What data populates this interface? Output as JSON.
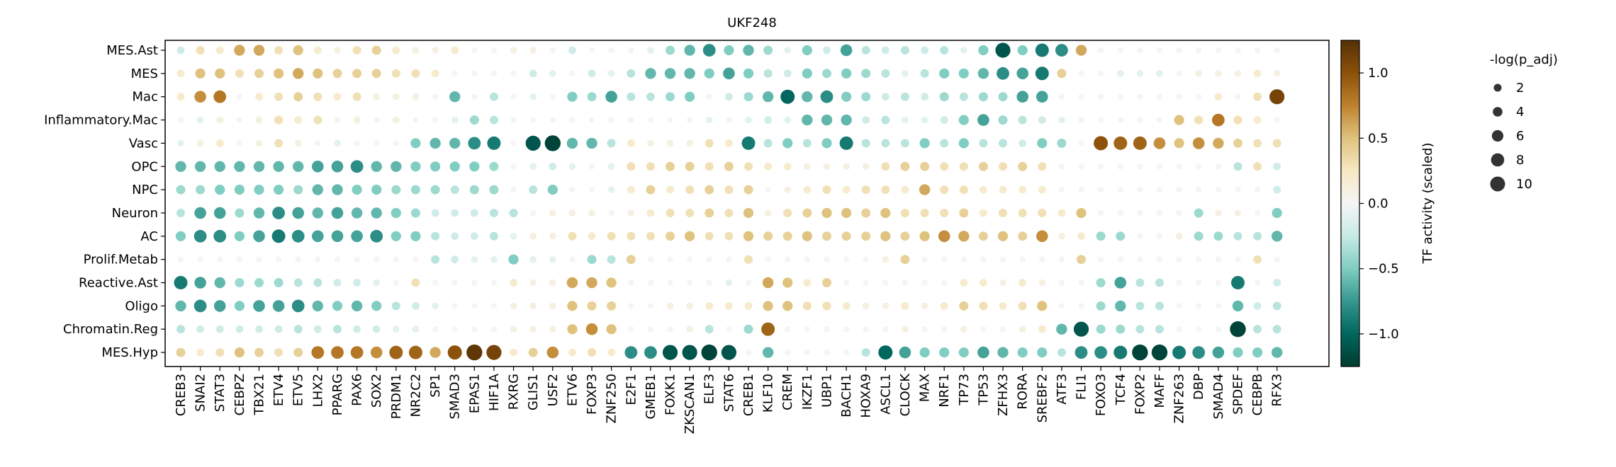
{
  "chart_data": {
    "type": "dotplot",
    "title": "UKF248",
    "xlabel": "",
    "ylabel": "",
    "rows": [
      "MES.Ast",
      "MES",
      "Mac",
      "Inflammatory.Mac",
      "Vasc",
      "OPC",
      "NPC",
      "Neuron",
      "AC",
      "Prolif.Metab",
      "Reactive.Ast",
      "Oligo",
      "Chromatin.Reg",
      "MES.Hyp"
    ],
    "columns": [
      "CREB3",
      "SNAI2",
      "STAT3",
      "CEBPZ",
      "TBX21",
      "ETV4",
      "ETV5",
      "LHX2",
      "PPARG",
      "PAX6",
      "SOX2",
      "PRDM1",
      "NR2C2",
      "SP1",
      "SMAD3",
      "EPAS1",
      "HIF1A",
      "RXRG",
      "GLIS1",
      "USF2",
      "ETV6",
      "FOXP3",
      "ZNF250",
      "E2F1",
      "GMEB1",
      "FOXK1",
      "ZKSCAN1",
      "ELF3",
      "STAT6",
      "CREB1",
      "KLF10",
      "CREM",
      "IKZF1",
      "UBP1",
      "BACH1",
      "HOXA9",
      "ASCL1",
      "CLOCK",
      "MAX",
      "NRF1",
      "TP73",
      "TP53",
      "ZFHX3",
      "RORA",
      "SREBF2",
      "ATF3",
      "FLI1",
      "FOXO3",
      "TCF4",
      "FOXP2",
      "MAFF",
      "ZNF263",
      "DBP",
      "SMAD4",
      "SPDEF",
      "CEBPB",
      "RFX3"
    ],
    "activity": [
      [
        -0.2,
        0.3,
        0.2,
        0.6,
        0.6,
        0.3,
        0.5,
        0.2,
        0.1,
        0.3,
        0.4,
        0.2,
        0.1,
        0.1,
        0.2,
        0,
        0,
        0.1,
        0.1,
        0,
        -0.2,
        0,
        0,
        0,
        -0.1,
        -0.4,
        -0.6,
        -0.8,
        -0.5,
        -0.6,
        -0.4,
        -0.1,
        -0.5,
        -0.2,
        -0.7,
        -0.3,
        -0.2,
        -0.3,
        -0.2,
        -0.3,
        -0.1,
        -0.5,
        -1.1,
        -0.5,
        -0.9,
        -0.8,
        0.6,
        0,
        0,
        0,
        0,
        0,
        0,
        0,
        0,
        0,
        0
      ],
      [
        0.2,
        0.5,
        0.5,
        0.3,
        0.4,
        0.5,
        0.6,
        0.5,
        0.4,
        0.4,
        0.4,
        0.3,
        0.3,
        0.2,
        0,
        0,
        0,
        0,
        -0.2,
        -0.1,
        0,
        -0.2,
        -0.1,
        -0.3,
        -0.6,
        -0.6,
        -0.6,
        -0.5,
        -0.7,
        -0.5,
        -0.3,
        -0.2,
        -0.5,
        -0.4,
        -0.5,
        -0.4,
        -0.3,
        -0.1,
        -0.3,
        -0.5,
        -0.5,
        -0.6,
        -0.8,
        -0.7,
        -0.9,
        0.4,
        0,
        0,
        -0.1,
        -0.1,
        -0.1,
        0,
        0.1,
        0.1,
        0.1,
        0.2,
        0.1
      ],
      [
        0.2,
        0.7,
        0.8,
        0,
        0.2,
        0.3,
        0.4,
        0.3,
        0.2,
        0.3,
        0.1,
        0.1,
        0.1,
        0,
        -0.6,
        0,
        -0.3,
        0,
        -0.1,
        0,
        -0.5,
        -0.4,
        -0.7,
        -0.3,
        -0.3,
        -0.4,
        -0.5,
        0,
        -0.2,
        -0.4,
        -0.6,
        -1,
        -0.6,
        -0.8,
        -0.5,
        -0.4,
        -0.2,
        -0.3,
        -0.2,
        -0.4,
        -0.3,
        -0.4,
        -0.4,
        -0.7,
        -0.7,
        0,
        0,
        0,
        0,
        0,
        0,
        0,
        0,
        0.2,
        0,
        0.3,
        1.1
      ],
      [
        0,
        -0.1,
        0.1,
        0,
        0.1,
        0.3,
        0.2,
        0.3,
        0,
        0.1,
        0,
        0.1,
        0,
        0,
        -0.1,
        -0.4,
        -0.3,
        0,
        0,
        0,
        0,
        0,
        0,
        0,
        0,
        0,
        0,
        -0.1,
        0,
        -0.1,
        -0.2,
        -0.1,
        -0.6,
        -0.6,
        -0.6,
        -0.2,
        -0.3,
        -0.1,
        -0.1,
        -0.2,
        -0.5,
        -0.7,
        -0.4,
        -0.3,
        -0.2,
        -0.1,
        0,
        0,
        0,
        0,
        0,
        0.5,
        0.3,
        0.8,
        0.3,
        0.2,
        0
      ],
      [
        -0.1,
        0.1,
        0.2,
        0,
        0.1,
        0.3,
        0.1,
        0,
        -0.1,
        0,
        0,
        0,
        -0.5,
        -0.6,
        -0.6,
        -0.8,
        -0.9,
        0,
        -1.1,
        -1.2,
        -0.6,
        -0.6,
        -0.3,
        0.2,
        0.1,
        0.1,
        0.1,
        0.3,
        0.2,
        -0.9,
        -0.3,
        -0.5,
        -0.3,
        -0.5,
        -0.9,
        -0.3,
        -0.3,
        -0.3,
        -0.5,
        -0.3,
        -0.5,
        -0.3,
        -0.3,
        -0.2,
        -0.5,
        -0.4,
        0,
        1,
        0.9,
        0.9,
        0.7,
        0.5,
        0.7,
        0.6,
        0.4,
        0.3,
        0.3
      ],
      [
        -0.6,
        -0.6,
        -0.6,
        -0.6,
        -0.6,
        -0.6,
        -0.6,
        -0.7,
        -0.7,
        -0.8,
        -0.6,
        -0.6,
        -0.5,
        -0.5,
        -0.5,
        -0.5,
        -0.4,
        0,
        -0.1,
        -0.2,
        -0.1,
        0,
        -0.1,
        0.3,
        0.3,
        0.4,
        0.4,
        0.3,
        0.4,
        0.3,
        0.2,
        0.2,
        0.1,
        0.1,
        0.1,
        0.1,
        0.3,
        0.4,
        0.4,
        0.3,
        0.3,
        0.4,
        0.3,
        0.4,
        0.3,
        0,
        0,
        0,
        0,
        0,
        0,
        0,
        0,
        0,
        -0.3,
        0.3,
        -0.2
      ],
      [
        -0.4,
        -0.4,
        -0.5,
        -0.5,
        -0.5,
        -0.5,
        -0.4,
        -0.6,
        -0.6,
        -0.5,
        -0.5,
        -0.4,
        -0.4,
        -0.4,
        -0.3,
        -0.4,
        -0.4,
        0,
        -0.3,
        -0.5,
        0,
        0,
        -0.1,
        0.2,
        0.4,
        0.2,
        0.3,
        0.4,
        0.3,
        0.4,
        0,
        0.1,
        0.2,
        0.3,
        0.2,
        0.3,
        0.3,
        0.2,
        0.6,
        0.3,
        0.3,
        0.2,
        0.2,
        0.2,
        0.2,
        0,
        0,
        0,
        0,
        0,
        0,
        0,
        0,
        0,
        0,
        0,
        -0.2
      ],
      [
        -0.3,
        -0.7,
        -0.7,
        -0.4,
        -0.6,
        -0.8,
        -0.7,
        -0.6,
        -0.7,
        -0.6,
        -0.6,
        -0.5,
        -0.4,
        -0.2,
        -0.2,
        -0.2,
        -0.3,
        -0.3,
        0,
        0.1,
        0.1,
        0.1,
        0,
        0.1,
        0.2,
        0.3,
        0.3,
        0.4,
        0.3,
        0.5,
        0.1,
        0.3,
        0.4,
        0.5,
        0.5,
        0.4,
        0.5,
        0.3,
        0.3,
        0.3,
        0.4,
        0.2,
        0.3,
        0.3,
        0.3,
        0.2,
        0.5,
        0,
        0,
        0,
        0,
        0,
        -0.4,
        0.1,
        0.1,
        0,
        -0.5
      ],
      [
        -0.5,
        -0.8,
        -0.8,
        -0.5,
        -0.7,
        -0.9,
        -0.8,
        -0.7,
        -0.7,
        -0.7,
        -0.8,
        -0.5,
        -0.5,
        -0.3,
        -0.2,
        -0.2,
        -0.3,
        -0.1,
        0.1,
        0.1,
        0.3,
        0.2,
        0.3,
        0.3,
        0.3,
        0.4,
        0.5,
        0.3,
        0.3,
        0.5,
        0.4,
        0.4,
        0.5,
        0.4,
        0.4,
        0.4,
        0.5,
        0.4,
        0.5,
        0.7,
        0.6,
        0.4,
        0.5,
        0.4,
        0.7,
        0.1,
        0.2,
        -0.4,
        -0.4,
        0,
        0,
        0.1,
        -0.4,
        -0.4,
        -0.3,
        -0.3,
        -0.6
      ],
      [
        0,
        0,
        0,
        0,
        0,
        0,
        0,
        0,
        0,
        0,
        0,
        0,
        0,
        -0.3,
        -0.2,
        -0.1,
        -0.1,
        -0.5,
        -0.1,
        -0.1,
        0,
        -0.4,
        -0.3,
        0.4,
        0,
        0,
        0,
        0,
        0,
        0.3,
        0,
        0,
        0,
        0,
        0,
        0,
        0.1,
        0.4,
        0,
        0,
        0,
        0,
        0,
        0,
        0,
        0,
        0.4,
        0,
        0,
        0,
        0,
        0,
        0,
        0,
        0,
        0.3,
        0
      ],
      [
        -0.9,
        -0.7,
        -0.6,
        -0.4,
        -0.4,
        -0.4,
        -0.3,
        -0.3,
        -0.2,
        -0.2,
        -0.1,
        0,
        0.3,
        0,
        0,
        0,
        0,
        0.2,
        0.1,
        0.1,
        0.6,
        0.6,
        0.5,
        0,
        0,
        0,
        0,
        0,
        -0.1,
        0,
        0.6,
        0.5,
        0.2,
        0.4,
        0,
        0,
        0,
        0,
        0,
        0,
        0.2,
        0.2,
        0.1,
        0.2,
        0.1,
        0,
        0,
        -0.4,
        -0.7,
        -0.3,
        -0.3,
        0,
        0,
        0,
        -0.9,
        0,
        -0.2
      ],
      [
        -0.6,
        -0.8,
        -0.7,
        -0.5,
        -0.7,
        -0.7,
        -0.8,
        -0.6,
        -0.5,
        -0.6,
        -0.5,
        -0.3,
        -0.2,
        -0.1,
        0,
        0,
        0,
        0.1,
        0.1,
        0.1,
        0.5,
        0.4,
        0.4,
        0,
        0,
        0.1,
        0.1,
        0.2,
        0.2,
        0.2,
        0.5,
        0.5,
        0.3,
        0.3,
        0.2,
        0.1,
        0.1,
        0.2,
        0.1,
        0.2,
        0.4,
        0.3,
        0.2,
        0.3,
        0.5,
        0,
        0,
        -0.4,
        -0.6,
        -0.3,
        -0.3,
        0,
        0,
        0,
        -0.6,
        -0.2,
        -0.3
      ],
      [
        -0.3,
        -0.2,
        -0.2,
        -0.2,
        -0.2,
        -0.2,
        -0.3,
        -0.2,
        -0.3,
        -0.2,
        -0.2,
        -0.1,
        -0.1,
        0,
        0,
        0,
        0,
        0.1,
        0.1,
        0.1,
        0.5,
        0.7,
        0.5,
        0,
        0,
        0,
        0.1,
        -0.3,
        0,
        -0.4,
        0.9,
        0,
        0,
        0,
        0,
        0,
        0,
        0.1,
        0,
        0,
        0.1,
        0,
        0,
        0.1,
        0.2,
        -0.6,
        -1.1,
        -0.4,
        -0.4,
        -0.3,
        -0.3,
        0,
        0,
        0,
        -1.2,
        -0.3,
        -0.3
      ],
      [
        0.4,
        0.2,
        0.3,
        0.5,
        0.4,
        0.3,
        0.4,
        0.8,
        0.8,
        0.8,
        0.7,
        0.9,
        0.9,
        0.6,
        1,
        1.2,
        1.1,
        0.2,
        0.4,
        0.7,
        0.2,
        0.3,
        0.2,
        -0.8,
        -0.8,
        -1.1,
        -1.1,
        -1.2,
        -1.1,
        0,
        -0.6,
        0,
        0,
        0,
        0,
        -0.3,
        -1,
        -0.7,
        -0.5,
        -0.5,
        -0.5,
        -0.7,
        -0.6,
        -0.5,
        -0.5,
        -0.3,
        -0.8,
        -0.8,
        -0.9,
        -1.2,
        -1.2,
        -0.9,
        -0.8,
        -0.7,
        -0.5,
        -0.5,
        -0.6
      ]
    ],
    "colorbar": {
      "label": "TF activity (scaled)",
      "ticks": [
        -1.0,
        -0.5,
        0.0,
        0.5,
        1.0
      ],
      "tick_labels": [
        "−1.0",
        "−0.5",
        "0.0",
        "0.5",
        "1.0"
      ],
      "range": [
        -1.25,
        1.25
      ]
    },
    "size_legend": {
      "title": "-log(p_adj)",
      "values": [
        2,
        4,
        6,
        8,
        10
      ]
    },
    "colors": [
      "#003c30",
      "#01665e",
      "#35978f",
      "#80cdc1",
      "#c7eae5",
      "#f5f5f5",
      "#f6e8c3",
      "#dfc27d",
      "#bf812d",
      "#8c510a",
      "#543005"
    ]
  }
}
